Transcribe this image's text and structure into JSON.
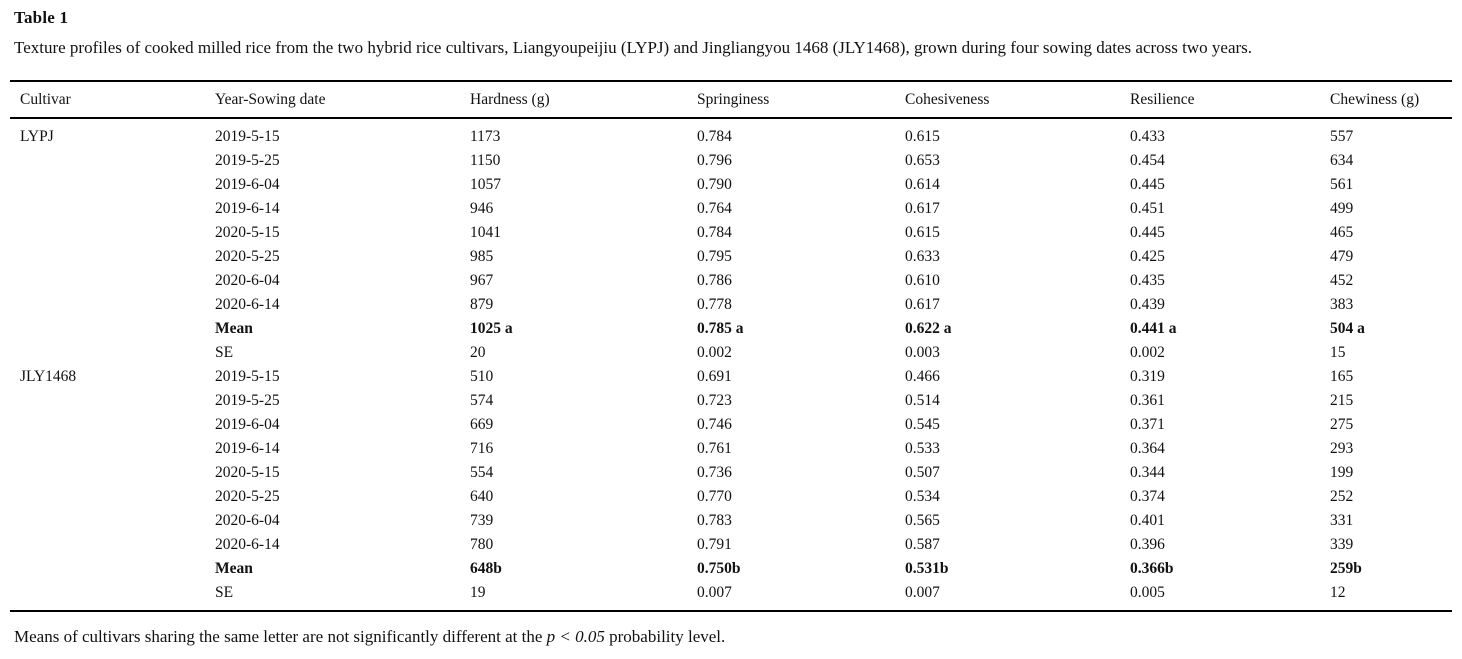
{
  "title": "Table 1",
  "caption": "Texture profiles of cooked milled rice from the two hybrid rice cultivars, Liangyoupeijiu (LYPJ) and Jingliangyou 1468 (JLY1468), grown during four sowing dates across two years.",
  "columns": [
    "Cultivar",
    "Year-Sowing date",
    "Hardness (g)",
    "Springiness",
    "Cohesiveness",
    "Resilience",
    "Chewiness (g)"
  ],
  "rows": [
    {
      "bold": false,
      "cells": [
        "LYPJ",
        "2019-5-15",
        "1173",
        "0.784",
        "0.615",
        "0.433",
        "557"
      ]
    },
    {
      "bold": false,
      "cells": [
        "",
        "2019-5-25",
        "1150",
        "0.796",
        "0.653",
        "0.454",
        "634"
      ]
    },
    {
      "bold": false,
      "cells": [
        "",
        "2019-6-04",
        "1057",
        "0.790",
        "0.614",
        "0.445",
        "561"
      ]
    },
    {
      "bold": false,
      "cells": [
        "",
        "2019-6-14",
        "946",
        "0.764",
        "0.617",
        "0.451",
        "499"
      ]
    },
    {
      "bold": false,
      "cells": [
        "",
        "2020-5-15",
        "1041",
        "0.784",
        "0.615",
        "0.445",
        "465"
      ]
    },
    {
      "bold": false,
      "cells": [
        "",
        "2020-5-25",
        "985",
        "0.795",
        "0.633",
        "0.425",
        "479"
      ]
    },
    {
      "bold": false,
      "cells": [
        "",
        "2020-6-04",
        "967",
        "0.786",
        "0.610",
        "0.435",
        "452"
      ]
    },
    {
      "bold": false,
      "cells": [
        "",
        "2020-6-14",
        "879",
        "0.778",
        "0.617",
        "0.439",
        "383"
      ]
    },
    {
      "bold": true,
      "cells": [
        "",
        "Mean",
        "1025 a",
        "0.785 a",
        "0.622 a",
        "0.441 a",
        "504 a"
      ]
    },
    {
      "bold": false,
      "cells": [
        "",
        "SE",
        "20",
        "0.002",
        "0.003",
        "0.002",
        "15"
      ]
    },
    {
      "bold": false,
      "cells": [
        "JLY1468",
        "2019-5-15",
        "510",
        "0.691",
        "0.466",
        "0.319",
        "165"
      ]
    },
    {
      "bold": false,
      "cells": [
        "",
        "2019-5-25",
        "574",
        "0.723",
        "0.514",
        "0.361",
        "215"
      ]
    },
    {
      "bold": false,
      "cells": [
        "",
        "2019-6-04",
        "669",
        "0.746",
        "0.545",
        "0.371",
        "275"
      ]
    },
    {
      "bold": false,
      "cells": [
        "",
        "2019-6-14",
        "716",
        "0.761",
        "0.533",
        "0.364",
        "293"
      ]
    },
    {
      "bold": false,
      "cells": [
        "",
        "2020-5-15",
        "554",
        "0.736",
        "0.507",
        "0.344",
        "199"
      ]
    },
    {
      "bold": false,
      "cells": [
        "",
        "2020-5-25",
        "640",
        "0.770",
        "0.534",
        "0.374",
        "252"
      ]
    },
    {
      "bold": false,
      "cells": [
        "",
        "2020-6-04",
        "739",
        "0.783",
        "0.565",
        "0.401",
        "331"
      ]
    },
    {
      "bold": false,
      "cells": [
        "",
        "2020-6-14",
        "780",
        "0.791",
        "0.587",
        "0.396",
        "339"
      ]
    },
    {
      "bold": true,
      "cells": [
        "",
        "Mean",
        "648b",
        "0.750b",
        "0.531b",
        "0.366b",
        "259b"
      ]
    },
    {
      "bold": false,
      "cells": [
        "",
        "SE",
        "19",
        "0.007",
        "0.007",
        "0.005",
        "12"
      ]
    }
  ],
  "footnote": {
    "prefix": "Means of cultivars sharing the same letter are not significantly different at the ",
    "p_term": "p < 0.05",
    "suffix": " probability level."
  }
}
